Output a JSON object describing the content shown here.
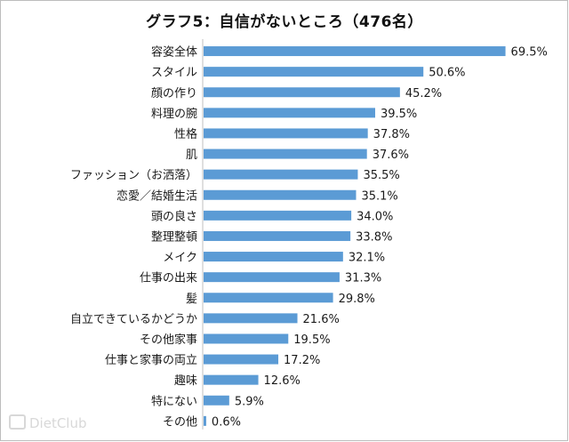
{
  "chart_data": {
    "type": "bar",
    "orientation": "horizontal",
    "title": "グラフ5：自信がないところ（476名）",
    "categories": [
      "容姿全体",
      "スタイル",
      "顔の作り",
      "料理の腕",
      "性格",
      "肌",
      "ファッション（お洒落）",
      "恋愛／結婚生活",
      "頭の良さ",
      "整理整頓",
      "メイク",
      "仕事の出来",
      "髪",
      "自立できているかどうか",
      "その他家事",
      "仕事と家事の両立",
      "趣味",
      "特にない",
      "その他"
    ],
    "values": [
      69.5,
      50.6,
      45.2,
      39.5,
      37.8,
      37.6,
      35.5,
      35.1,
      34.0,
      33.8,
      32.1,
      31.3,
      29.8,
      21.6,
      19.5,
      17.2,
      12.6,
      5.9,
      0.6
    ],
    "value_labels": [
      "69.5%",
      "50.6%",
      "45.2%",
      "39.5%",
      "37.8%",
      "37.6%",
      "35.5%",
      "35.1%",
      "34.0%",
      "33.8%",
      "32.1%",
      "31.3%",
      "29.8%",
      "21.6%",
      "19.5%",
      "17.2%",
      "12.6%",
      "5.9%",
      "0.6%"
    ],
    "unit": "%",
    "xlim": [
      0,
      70
    ],
    "grid": false,
    "legend": "none",
    "bar_color": "#5b9bd5"
  },
  "watermark": {
    "text": "DietClub",
    "icon": "diet-club-logo-icon"
  }
}
